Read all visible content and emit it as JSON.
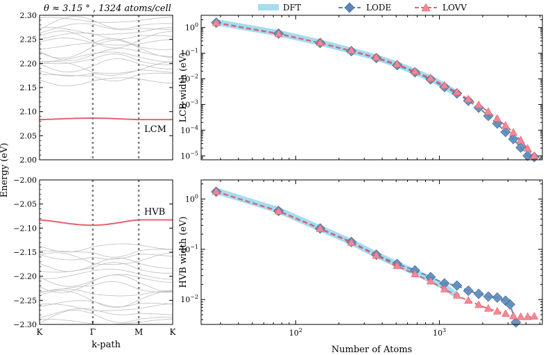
{
  "colors": {
    "dft": "#a6dcef",
    "lode": "#5b87b8",
    "lovv": "#e8606e",
    "band": "#bdbdbd",
    "kline": "#7f7f7f"
  },
  "chart_data": [
    {
      "id": "band-upper",
      "type": "line",
      "title": "θ ≈ 3.15 ° , 1324 atoms/cell",
      "xlabel": "",
      "ylabel": "Energy (eV)",
      "ylim": [
        2.0,
        2.3
      ],
      "yticks": [
        "2.00",
        "2.05",
        "2.10",
        "2.15",
        "2.20",
        "2.25",
        "2.30"
      ],
      "highlight": {
        "name": "LCM",
        "energy_edge": 2.0835,
        "energy_mid": 2.0865
      },
      "annotation": "LCM"
    },
    {
      "id": "band-lower",
      "type": "line",
      "xlabel": "k-path",
      "ylim": [
        -2.3,
        -2.0
      ],
      "yticks": [
        "−2.00",
        "−2.05",
        "−2.10",
        "−2.15",
        "−2.20",
        "−2.25",
        "−2.30"
      ],
      "xticks": [
        "K",
        "Γ",
        "M",
        "K"
      ],
      "highlight": {
        "name": "HVB",
        "energy_edge": -2.083,
        "energy_mid": -2.094
      },
      "annotation": "HVB"
    },
    {
      "id": "lcb-width",
      "type": "line",
      "xscale": "log",
      "yscale": "log",
      "xlabel": "",
      "ylabel": "LCB width (eV)",
      "xlim": [
        22,
        5200
      ],
      "ylim": [
        7e-06,
        3
      ],
      "legend": [
        "DFT",
        "LODE",
        "LOVV"
      ],
      "legend_position": "top",
      "series": [
        {
          "name": "DFT",
          "x": [
            28,
            76,
            148,
            244,
            364,
            508,
            676,
            868,
            1084,
            1324
          ],
          "y": [
            1.6,
            0.6,
            0.26,
            0.125,
            0.068,
            0.036,
            0.019,
            0.0105,
            0.0052,
            0.0026
          ]
        },
        {
          "name": "LODE",
          "x": [
            28,
            76,
            148,
            244,
            364,
            508,
            676,
            868,
            1084,
            1324,
            1588,
            1876,
            2188,
            2524,
            2884,
            3268,
            3676,
            4108,
            4564
          ],
          "y": [
            1.55,
            0.58,
            0.25,
            0.12,
            0.065,
            0.034,
            0.018,
            0.0095,
            0.0048,
            0.0027,
            0.0014,
            0.00075,
            0.00036,
            0.00018,
            8.5e-05,
            4.5e-05,
            2.1e-05,
            1e-05,
            9e-06
          ]
        },
        {
          "name": "LOVV",
          "x": [
            28,
            76,
            148,
            244,
            364,
            508,
            676,
            868,
            1084,
            1324,
            1588,
            1876,
            2188,
            2524,
            2884,
            3268,
            3676,
            4108,
            4564
          ],
          "y": [
            1.5,
            0.56,
            0.25,
            0.125,
            0.068,
            0.037,
            0.0195,
            0.0105,
            0.0055,
            0.003,
            0.0016,
            0.00095,
            0.00052,
            0.00028,
            0.00015,
            8e-05,
            4e-05,
            1.9e-05,
            1e-05
          ]
        }
      ]
    },
    {
      "id": "hvb-width",
      "type": "line",
      "xscale": "log",
      "yscale": "log",
      "xlabel": "Number of Atoms",
      "ylabel": "HVB width (eV)",
      "xlim": [
        22,
        5200
      ],
      "ylim": [
        0.0032,
        2.4
      ],
      "series": [
        {
          "name": "DFT",
          "x": [
            28,
            76,
            148,
            244,
            364,
            508,
            676,
            868,
            1084,
            1324
          ],
          "y": [
            1.45,
            0.6,
            0.26,
            0.14,
            0.078,
            0.05,
            0.035,
            0.025,
            0.018,
            0.012
          ]
        },
        {
          "name": "LODE",
          "x": [
            28,
            76,
            148,
            244,
            364,
            508,
            676,
            868,
            1084,
            1324,
            1588,
            1876,
            2188,
            2524,
            2884,
            3100,
            3400
          ],
          "y": [
            1.4,
            0.58,
            0.26,
            0.14,
            0.078,
            0.051,
            0.038,
            0.028,
            0.021,
            0.019,
            0.015,
            0.013,
            0.0115,
            0.011,
            0.0095,
            0.008,
            0.0035
          ]
        },
        {
          "name": "LOVV",
          "x": [
            28,
            76,
            148,
            244,
            364,
            508,
            676,
            868,
            1084,
            1324,
            1588,
            1876,
            2188,
            2524,
            2884,
            3268,
            3676,
            4108,
            4564
          ],
          "y": [
            1.4,
            0.57,
            0.255,
            0.135,
            0.075,
            0.047,
            0.032,
            0.023,
            0.016,
            0.012,
            0.0095,
            0.0078,
            0.0066,
            0.0058,
            0.0052,
            0.0047,
            0.0045,
            0.0045,
            0.0046
          ]
        }
      ]
    }
  ]
}
